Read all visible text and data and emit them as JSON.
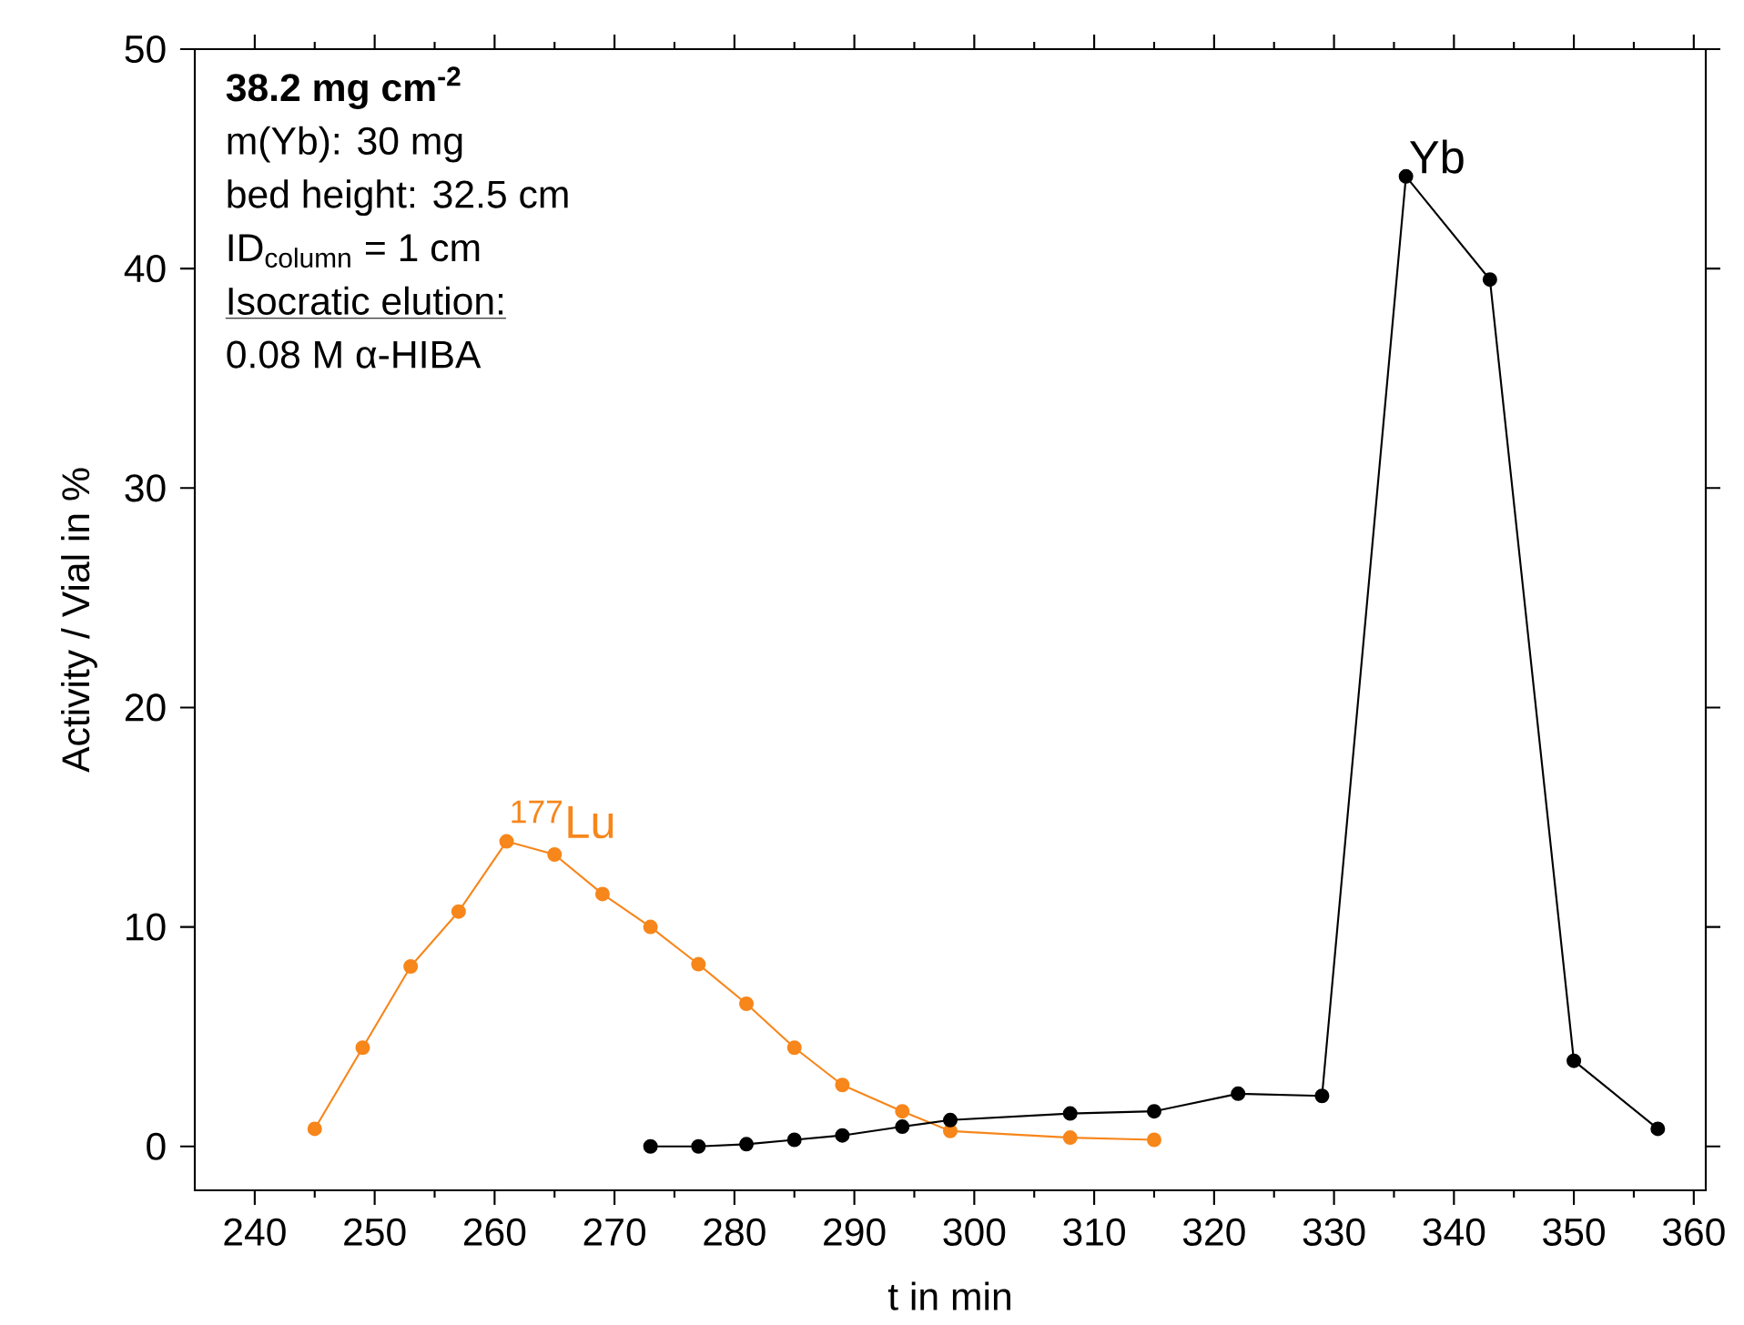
{
  "chart_data": {
    "type": "line",
    "xlabel": "t in min",
    "ylabel": "Activity / Vial in %",
    "xlim": [
      235,
      361
    ],
    "ylim": [
      -2,
      50
    ],
    "xticks": [
      240,
      250,
      260,
      270,
      280,
      290,
      300,
      310,
      320,
      330,
      340,
      350,
      360
    ],
    "yticks": [
      0,
      10,
      20,
      30,
      40,
      50
    ],
    "grid": false,
    "legend": false,
    "marker": "circle",
    "line_style": "solid",
    "annotations": [
      "**38.2 mg cm$^{-2}$**",
      "m(Yb): 30 mg",
      "bed height: 32.5 cm",
      "ID$_{column}$ = 1 cm",
      "Isocratic elution:",
      "0.08 M α-HIBA"
    ],
    "series": [
      {
        "name": "$^{177}$Lu",
        "color": "#f7861b",
        "x": [
          245,
          249,
          253,
          257,
          261,
          265,
          269,
          273,
          277,
          281,
          285,
          289,
          294,
          298,
          308,
          315
        ],
        "values": [
          0.8,
          4.5,
          8.2,
          10.7,
          13.9,
          13.3,
          11.5,
          10.0,
          8.3,
          6.5,
          4.5,
          2.8,
          1.6,
          0.7,
          0.4,
          0.3
        ]
      },
      {
        "name": "Yb",
        "color": "#000000",
        "x": [
          273,
          277,
          281,
          285,
          289,
          294,
          298,
          308,
          315,
          322,
          329,
          336,
          343,
          350,
          357
        ],
        "values": [
          0.0,
          0.0,
          0.1,
          0.3,
          0.5,
          0.9,
          1.2,
          1.5,
          1.6,
          2.4,
          2.3,
          44.2,
          39.5,
          3.9,
          0.8
        ]
      }
    ]
  }
}
